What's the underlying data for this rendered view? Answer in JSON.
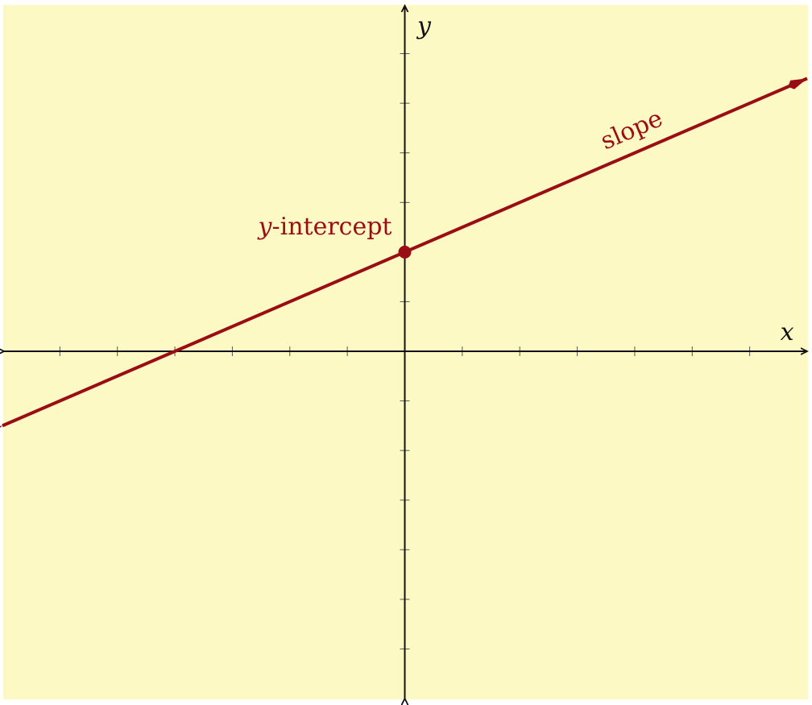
{
  "chart_data": {
    "type": "line",
    "xlabel": "x",
    "ylabel": "y",
    "xlim": [
      -7,
      7
    ],
    "ylim": [
      -7,
      7
    ],
    "x_ticks": [
      -6,
      -5,
      -4,
      -3,
      -2,
      -1,
      1,
      2,
      3,
      4,
      5,
      6
    ],
    "y_ticks": [
      -6,
      -5,
      -4,
      -3,
      -2,
      -1,
      1,
      2,
      3,
      4,
      5,
      6
    ],
    "series": [
      {
        "slope": 0.5,
        "intercept": 2,
        "x": [
          -7,
          7
        ],
        "y": [
          -1.5,
          5.5
        ]
      }
    ],
    "annotations": {
      "intercept_point": {
        "x": 0,
        "y": 2
      },
      "intercept_var": "y",
      "intercept_rest": "-intercept",
      "slope_label": "slope"
    },
    "grid": false
  },
  "colors": {
    "background": "#fdf9c4",
    "axis": "#111111",
    "line": "#9b0d14"
  }
}
